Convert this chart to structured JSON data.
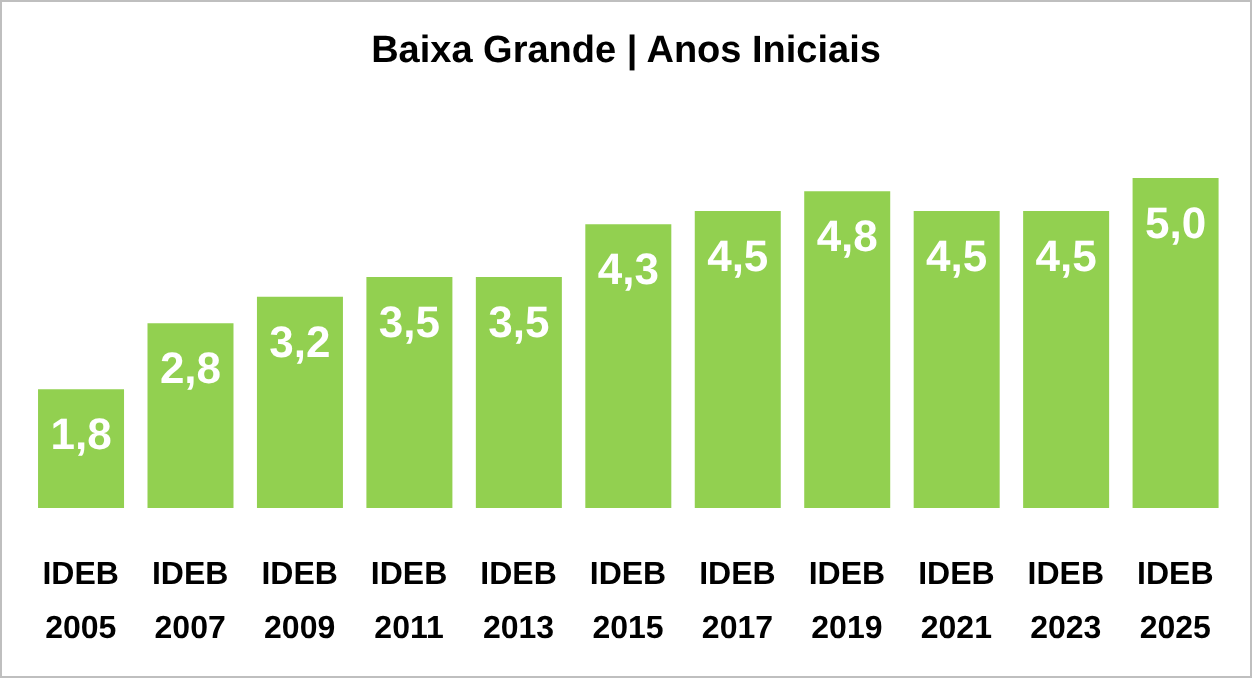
{
  "chart_data": {
    "type": "bar",
    "title": "Baixa Grande | Anos Iniciais",
    "categories": [
      "IDEB 2005",
      "IDEB 2007",
      "IDEB 2009",
      "IDEB 2011",
      "IDEB 2013",
      "IDEB 2015",
      "IDEB 2017",
      "IDEB 2019",
      "IDEB 2021",
      "IDEB 2023",
      "IDEB 2025"
    ],
    "values": [
      1.8,
      2.8,
      3.2,
      3.5,
      3.5,
      4.3,
      4.5,
      4.8,
      4.5,
      4.5,
      5.0
    ],
    "value_labels": [
      "1,8",
      "2,8",
      "3,2",
      "3,5",
      "3,5",
      "4,3",
      "4,5",
      "4,8",
      "4,5",
      "4,5",
      "5,0"
    ],
    "color": "#92d050",
    "grid": false,
    "legend": false,
    "tick_labels": "x"
  }
}
